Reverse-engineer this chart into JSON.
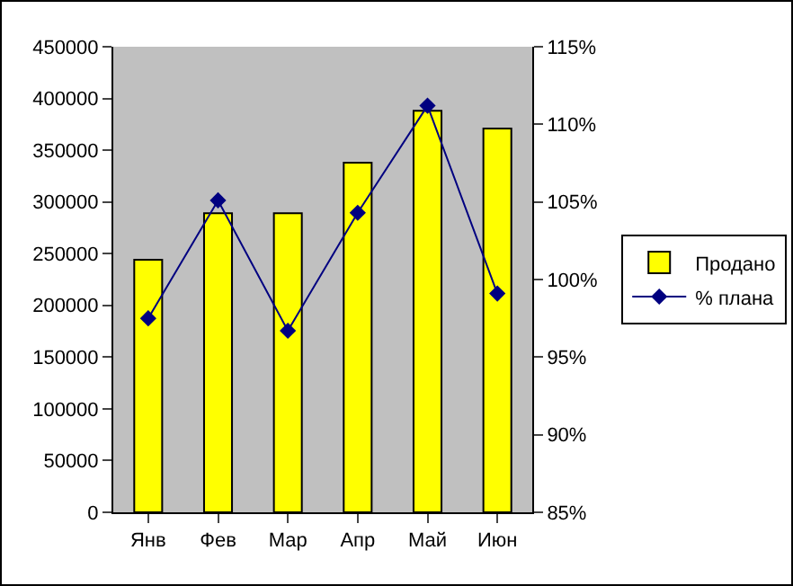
{
  "chart_data": {
    "type": "bar",
    "categories": [
      "Янв",
      "Фев",
      "Мар",
      "Апр",
      "Май",
      "Июн"
    ],
    "series": [
      {
        "name": "Продано",
        "color": "#ffff00",
        "values": [
          244000,
          289000,
          289000,
          338000,
          388000,
          371000
        ]
      },
      {
        "name": "% плана",
        "type": "line",
        "axis": "y2",
        "color": "#000080",
        "marker": "diamond",
        "values": [
          97.5,
          105.1,
          96.7,
          104.3,
          111.2,
          99.1
        ]
      }
    ],
    "ylim": [
      0,
      450000
    ],
    "yticks": [
      0,
      50000,
      100000,
      150000,
      200000,
      250000,
      300000,
      350000,
      400000,
      450000
    ],
    "y2lim": [
      85,
      115
    ],
    "y2ticks": [
      {
        "value": 85,
        "label": "85%"
      },
      {
        "value": 90,
        "label": "90%"
      },
      {
        "value": 95,
        "label": "95%"
      },
      {
        "value": 100,
        "label": "100%"
      },
      {
        "value": 105,
        "label": "105%"
      },
      {
        "value": 110,
        "label": "110%"
      },
      {
        "value": 115,
        "label": "115%"
      }
    ],
    "grid": false,
    "legend": "right"
  }
}
